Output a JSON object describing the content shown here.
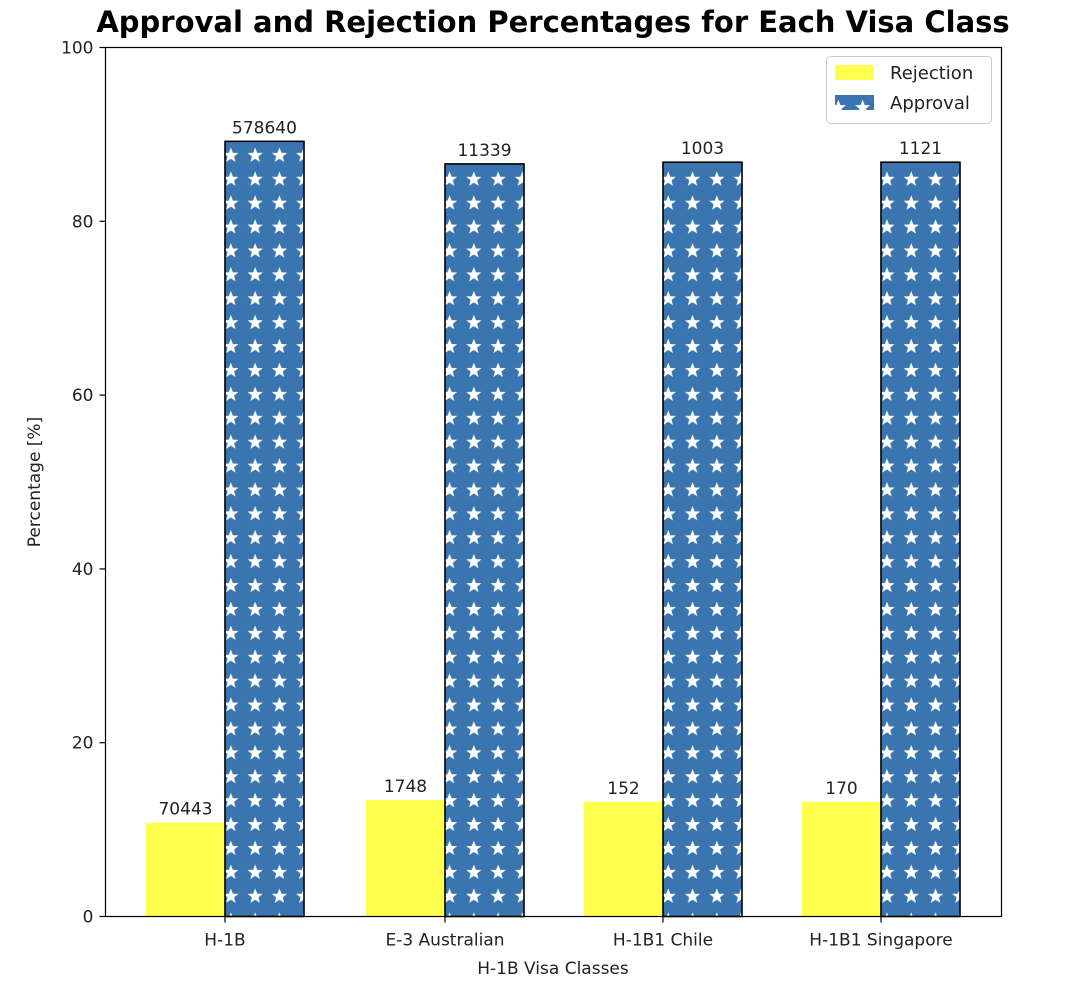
{
  "chart_data": {
    "type": "bar",
    "title": "Approval and Rejection Percentages for Each Visa Class",
    "xlabel": "H-1B Visa Classes",
    "ylabel": "Percentage [%]",
    "ylim": [
      0,
      100
    ],
    "yticks": [
      "0",
      "20",
      "40",
      "60",
      "80",
      "100"
    ],
    "categories": [
      "H-1B",
      "E-3 Australian",
      "H-1B1 Chile",
      "H-1B1 Singapore"
    ],
    "grid": false,
    "legend_position": "top-right",
    "series": [
      {
        "name": "Rejection",
        "color": "#ffff4d",
        "pattern": "solid",
        "values": [
          10.8,
          13.4,
          13.2,
          13.2
        ],
        "labels": [
          "70443",
          "1748",
          "152",
          "170"
        ]
      },
      {
        "name": "Approval",
        "color": "#3a75b0",
        "pattern": "white-stars",
        "values": [
          89.2,
          86.6,
          86.8,
          86.8
        ],
        "labels": [
          "578640",
          "11339",
          "1003",
          "1121"
        ]
      }
    ]
  }
}
